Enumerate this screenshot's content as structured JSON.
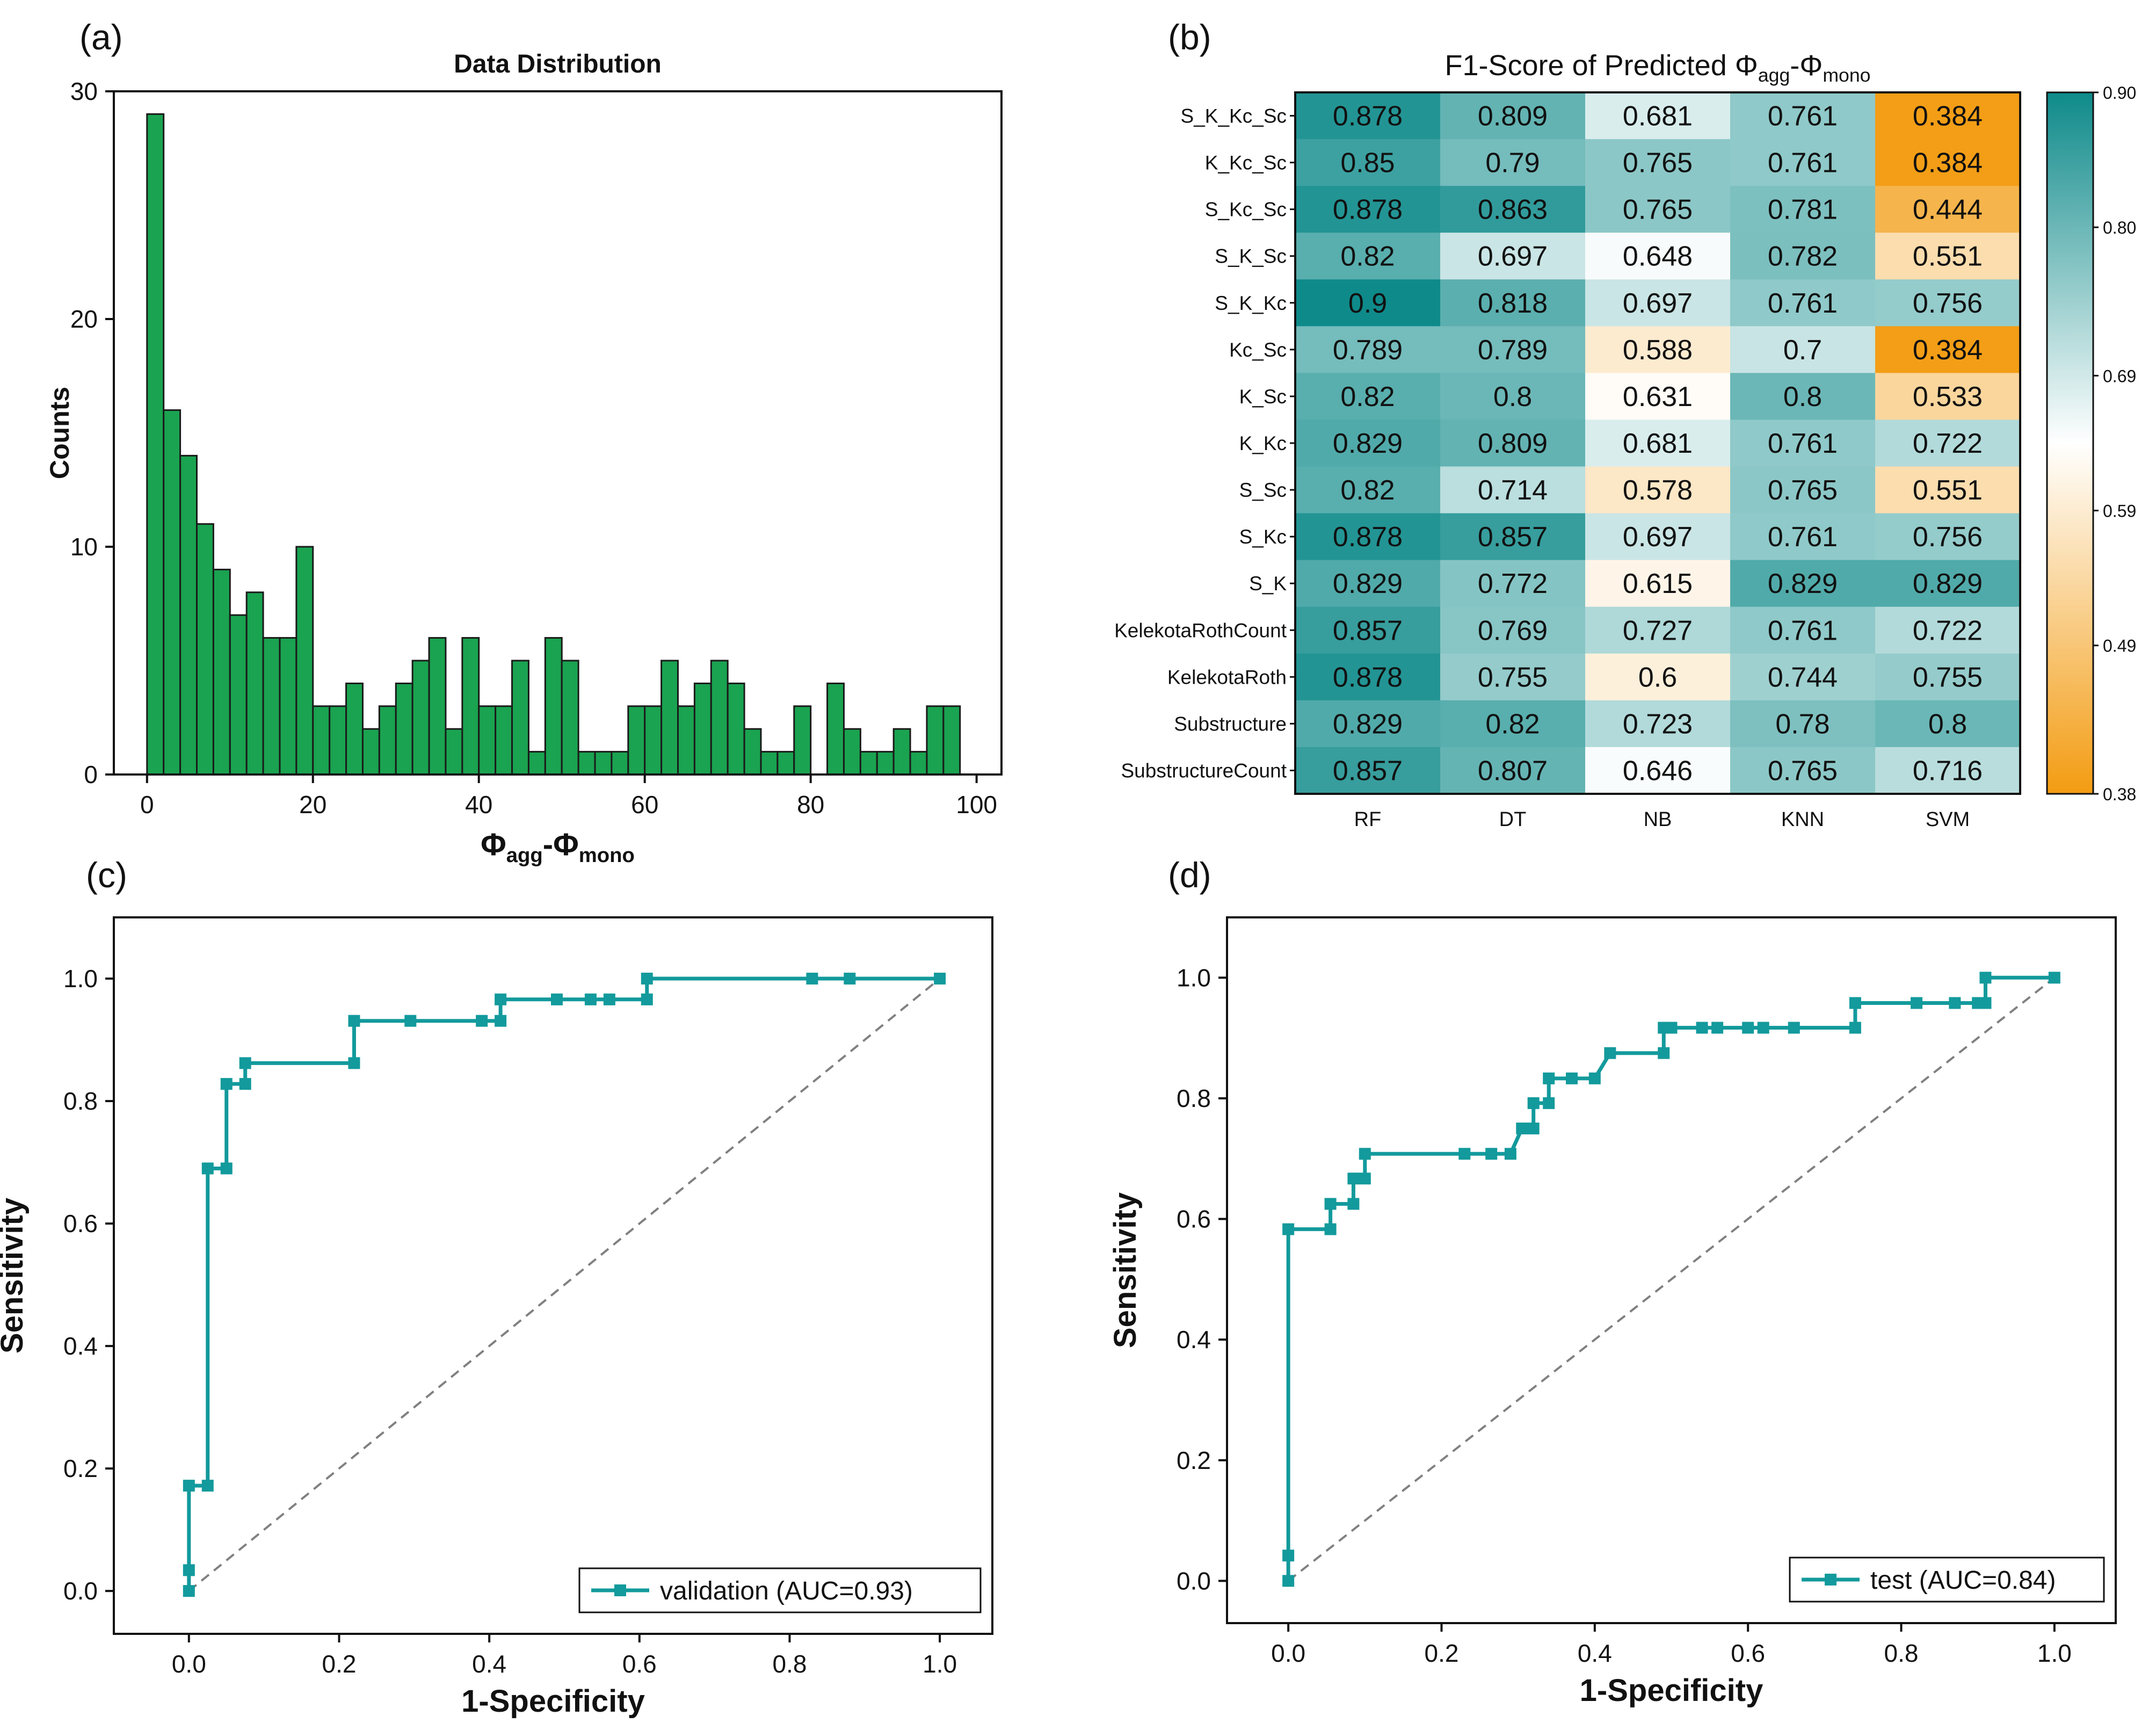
{
  "colors": {
    "hist_fill": "#1aa350",
    "hist_stroke": "#1a1a1a",
    "roc_line": "#139a9c",
    "diagonal": "#808080",
    "heat_low": "#f39c12",
    "heat_mid": "#ffffff",
    "heat_high": "#0f8a8a"
  },
  "chart_data": [
    {
      "panel": "(a)",
      "type": "bar",
      "title": "Data Distribution",
      "xlabel_main": "Φ",
      "xlabel_sub1": "agg",
      "xlabel_sep": "-Φ",
      "xlabel_sub2": "mono",
      "ylabel": "Counts",
      "xlim": [
        -4,
        103
      ],
      "ylim": [
        0,
        30
      ],
      "xticks": [
        0,
        20,
        40,
        60,
        80,
        100
      ],
      "yticks": [
        0,
        10,
        20,
        30
      ],
      "bin_start": 0,
      "bin_width": 2,
      "values": [
        29,
        16,
        14,
        11,
        9,
        7,
        8,
        6,
        6,
        10,
        3,
        3,
        4,
        2,
        3,
        4,
        5,
        6,
        2,
        6,
        3,
        3,
        5,
        1,
        6,
        5,
        1,
        1,
        1,
        3,
        3,
        5,
        3,
        4,
        5,
        4,
        2,
        1,
        1,
        3,
        0,
        4,
        2,
        1,
        1,
        2,
        1,
        3,
        3
      ]
    },
    {
      "panel": "(b)",
      "type": "heatmap",
      "title_main": "F1-Score of Predicted Φ",
      "title_sub1": "agg",
      "title_sep": "-Φ",
      "title_sub2": "mono",
      "columns": [
        "RF",
        "DT",
        "NB",
        "KNN",
        "SVM"
      ],
      "rows": [
        "S_K_Kc_Sc",
        "K_Kc_Sc",
        "S_Kc_Sc",
        "S_K_Sc",
        "S_K_Kc",
        "Kc_Sc",
        "K_Sc",
        "K_Kc",
        "S_Sc",
        "S_Kc",
        "S_K",
        "KelekotaRothCount",
        "KelekotaRoth",
        "Substructure",
        "SubstructureCount"
      ],
      "cells": [
        [
          "0.878",
          "0.809",
          "0.681",
          "0.761",
          "0.384"
        ],
        [
          "0.85",
          "0.79",
          "0.765",
          "0.761",
          "0.384"
        ],
        [
          "0.878",
          "0.863",
          "0.765",
          "0.781",
          "0.444"
        ],
        [
          "0.82",
          "0.697",
          "0.648",
          "0.782",
          "0.551"
        ],
        [
          "0.9",
          "0.818",
          "0.697",
          "0.761",
          "0.756"
        ],
        [
          "0.789",
          "0.789",
          "0.588",
          "0.7",
          "0.384"
        ],
        [
          "0.82",
          "0.8",
          "0.631",
          "0.8",
          "0.533"
        ],
        [
          "0.829",
          "0.809",
          "0.681",
          "0.761",
          "0.722"
        ],
        [
          "0.82",
          "0.714",
          "0.578",
          "0.765",
          "0.551"
        ],
        [
          "0.878",
          "0.857",
          "0.697",
          "0.761",
          "0.756"
        ],
        [
          "0.829",
          "0.772",
          "0.615",
          "0.829",
          "0.829"
        ],
        [
          "0.857",
          "0.769",
          "0.727",
          "0.761",
          "0.722"
        ],
        [
          "0.878",
          "0.755",
          "0.6",
          "0.744",
          "0.755"
        ],
        [
          "0.829",
          "0.82",
          "0.723",
          "0.78",
          "0.8"
        ],
        [
          "0.857",
          "0.807",
          "0.646",
          "0.765",
          "0.716"
        ]
      ],
      "colorbar_ticks": [
        "0.90",
        "0.80",
        "0.69",
        "0.59",
        "0.49",
        "0.38"
      ],
      "vmin": 0.38,
      "vmid": 0.64,
      "vmax": 0.9
    },
    {
      "panel": "(c)",
      "type": "line",
      "xlabel": "1-Specificity",
      "ylabel": "Sensitivity",
      "legend": "validation (AUC=0.93)",
      "legend_position": "bottom-right",
      "xlim": [
        -0.1,
        1.07
      ],
      "ylim": [
        -0.07,
        1.1
      ],
      "xticks": [
        "0.0",
        "0.2",
        "0.4",
        "0.6",
        "0.8",
        "1.0"
      ],
      "yticks": [
        "0.0",
        "0.2",
        "0.4",
        "0.6",
        "0.8",
        "1.0"
      ],
      "x": [
        0.0,
        0.0,
        0.0,
        0.025,
        0.025,
        0.05,
        0.05,
        0.075,
        0.075,
        0.22,
        0.22,
        0.295,
        0.39,
        0.415,
        0.415,
        0.49,
        0.535,
        0.56,
        0.61,
        0.61,
        0.83,
        0.88,
        1.0
      ],
      "y": [
        0.0,
        0.034,
        0.172,
        0.172,
        0.69,
        0.69,
        0.828,
        0.828,
        0.862,
        0.862,
        0.931,
        0.931,
        0.931,
        0.931,
        0.966,
        0.966,
        0.966,
        0.966,
        0.966,
        1.0,
        1.0,
        1.0,
        1.0
      ]
    },
    {
      "panel": "(d)",
      "type": "line",
      "xlabel": "1-Specificity",
      "ylabel": "Sensitivity",
      "legend": "test (AUC=0.84)",
      "legend_position": "bottom-right",
      "xlim": [
        -0.08,
        1.08
      ],
      "ylim": [
        -0.07,
        1.1
      ],
      "xticks": [
        "0.0",
        "0.2",
        "0.4",
        "0.6",
        "0.8",
        "1.0"
      ],
      "yticks": [
        "0.0",
        "0.2",
        "0.4",
        "0.6",
        "0.8",
        "1.0"
      ],
      "x": [
        0.0,
        0.0,
        0.0,
        0.055,
        0.055,
        0.085,
        0.085,
        0.1,
        0.1,
        0.23,
        0.265,
        0.29,
        0.305,
        0.32,
        0.32,
        0.34,
        0.34,
        0.37,
        0.4,
        0.42,
        0.49,
        0.49,
        0.5,
        0.54,
        0.56,
        0.6,
        0.62,
        0.66,
        0.74,
        0.74,
        0.82,
        0.87,
        0.9,
        0.91,
        0.91,
        1.0
      ],
      "y": [
        0.0,
        0.042,
        0.583,
        0.583,
        0.625,
        0.625,
        0.667,
        0.667,
        0.708,
        0.708,
        0.708,
        0.708,
        0.75,
        0.75,
        0.792,
        0.792,
        0.833,
        0.833,
        0.833,
        0.875,
        0.875,
        0.917,
        0.917,
        0.917,
        0.917,
        0.917,
        0.917,
        0.917,
        0.917,
        0.958,
        0.958,
        0.958,
        0.958,
        0.958,
        1.0,
        1.0
      ]
    }
  ]
}
